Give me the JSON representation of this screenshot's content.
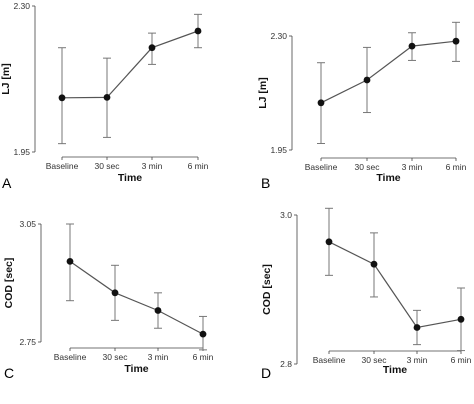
{
  "chart_data": [
    {
      "panel_letter": "A",
      "type": "line",
      "xlabel": "Time",
      "ylabel": "LJ [m]",
      "categories": [
        "Baseline",
        "30 sec",
        "3 min",
        "6 min"
      ],
      "ylim": [
        1.95,
        2.3
      ],
      "yticks": [
        "1.95",
        "2.30"
      ],
      "values": [
        2.08,
        2.081,
        2.2,
        2.24
      ],
      "err_low": [
        1.97,
        1.985,
        2.16,
        2.2
      ],
      "err_high": [
        2.2,
        2.175,
        2.235,
        2.28
      ],
      "grid": false,
      "legend": "none"
    },
    {
      "panel_letter": "B",
      "type": "line",
      "xlabel": "Time",
      "ylabel": "LJ [m]",
      "categories": [
        "Baseline",
        "30 sec",
        "3 min",
        "6 min"
      ],
      "ylim": [
        1.95,
        2.3
      ],
      "yticks": [
        "1.95",
        "2.30"
      ],
      "values": [
        2.095,
        2.165,
        2.269,
        2.284
      ],
      "err_low": [
        1.97,
        2.065,
        2.225,
        2.222
      ],
      "err_high": [
        2.218,
        2.265,
        2.31,
        2.342
      ],
      "grid": false,
      "legend": "none"
    },
    {
      "panel_letter": "C",
      "type": "line",
      "xlabel": "Time",
      "ylabel": "COD [sec]",
      "categories": [
        "Baseline",
        "30 sec",
        "3 min",
        "6 min"
      ],
      "ylim": [
        2.75,
        3.05
      ],
      "yticks": [
        "2.75",
        "3.05"
      ],
      "values": [
        2.955,
        2.875,
        2.83,
        2.77
      ],
      "err_low": [
        2.855,
        2.805,
        2.785,
        2.73
      ],
      "err_high": [
        3.05,
        2.945,
        2.875,
        2.815
      ],
      "grid": false,
      "legend": "none"
    },
    {
      "panel_letter": "D",
      "type": "line",
      "xlabel": "Time",
      "ylabel": "COD [sec]",
      "categories": [
        "Baseline",
        "30 sec",
        "3 min",
        "6 min"
      ],
      "ylim": [
        2.8,
        3.0
      ],
      "yticks": [
        "2.8",
        "3.0"
      ],
      "values": [
        2.964,
        2.934,
        2.849,
        2.86
      ],
      "err_low": [
        2.919,
        2.89,
        2.826,
        2.818
      ],
      "err_high": [
        3.009,
        2.976,
        2.872,
        2.902
      ],
      "grid": false,
      "legend": "none"
    }
  ]
}
